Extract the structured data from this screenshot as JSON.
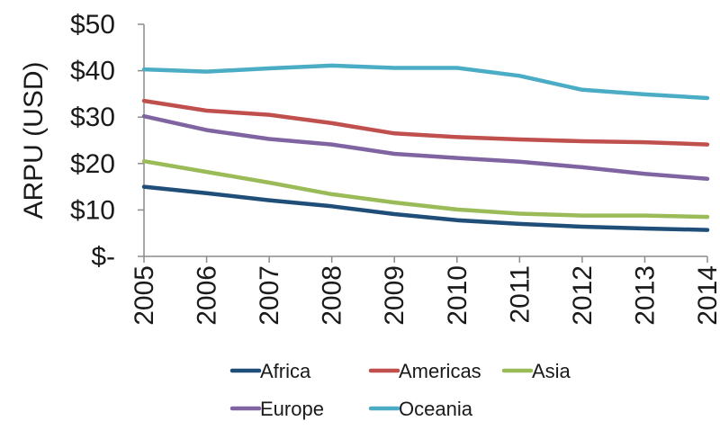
{
  "chart_data": {
    "type": "line",
    "title": "",
    "xlabel": "",
    "ylabel": "ARPU (USD)",
    "x": [
      "2005",
      "2006",
      "2007",
      "2008",
      "2009",
      "2010",
      "2011",
      "2012",
      "2013",
      "2014"
    ],
    "ylim": [
      0,
      50
    ],
    "yticks": [
      {
        "value": 0,
        "label": "$-"
      },
      {
        "value": 10,
        "label": "$10"
      },
      {
        "value": 20,
        "label": "$20"
      },
      {
        "value": 30,
        "label": "$30"
      },
      {
        "value": 40,
        "label": "$40"
      },
      {
        "value": 50,
        "label": "$50"
      }
    ],
    "grid": false,
    "legend_position": "bottom",
    "series": [
      {
        "name": "Africa",
        "color": "#1F4E79",
        "values": [
          15.0,
          13.6,
          12.1,
          10.8,
          9.1,
          7.8,
          7.0,
          6.4,
          6.0,
          5.7
        ]
      },
      {
        "name": "Americas",
        "color": "#C0504D",
        "values": [
          33.5,
          31.4,
          30.5,
          28.7,
          26.5,
          25.7,
          25.2,
          24.8,
          24.6,
          24.1
        ]
      },
      {
        "name": "Asia",
        "color": "#9BBB59",
        "values": [
          20.5,
          18.2,
          15.9,
          13.4,
          11.6,
          10.1,
          9.2,
          8.8,
          8.8,
          8.5
        ]
      },
      {
        "name": "Europe",
        "color": "#8064A2",
        "values": [
          30.2,
          27.2,
          25.3,
          24.1,
          22.1,
          21.2,
          20.4,
          19.2,
          17.8,
          16.7
        ]
      },
      {
        "name": "Oceania",
        "color": "#4BACC6",
        "values": [
          40.3,
          39.8,
          40.5,
          41.1,
          40.6,
          40.6,
          38.9,
          35.9,
          34.9,
          34.1
        ]
      }
    ]
  }
}
